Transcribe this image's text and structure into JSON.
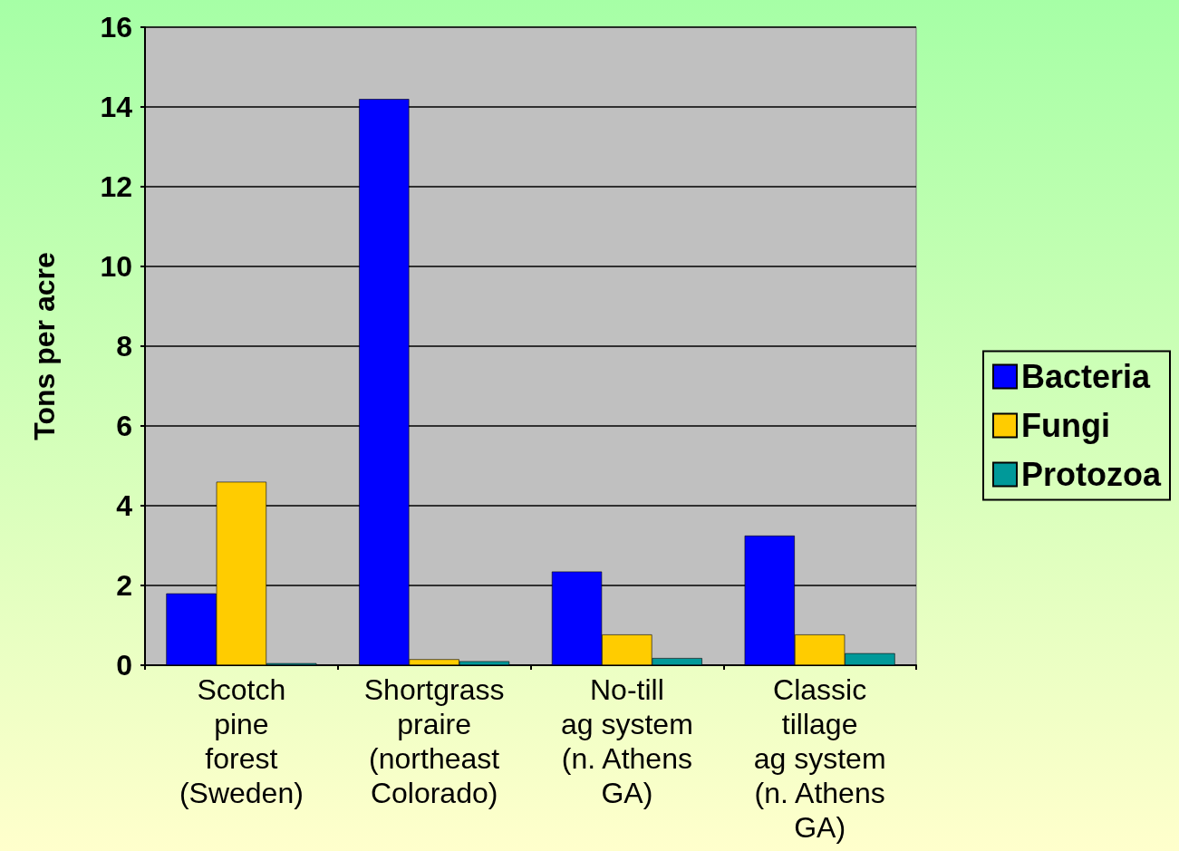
{
  "chart_data": {
    "type": "bar",
    "ylabel": "Tons per acre",
    "categories": [
      "Scotch\npine\nforest\n(Sweden)",
      "Shortgrass\npraire\n(northeast\nColorado)",
      "No-till\nag system\n(n. Athens\nGA)",
      "Classic\ntillage\nag system\n(n. Athens\nGA)"
    ],
    "series": [
      {
        "name": "Bacteria",
        "color": "#0000ff",
        "values": [
          1.8,
          14.2,
          2.35,
          3.25
        ]
      },
      {
        "name": "Fungi",
        "color": "#ffcc00",
        "values": [
          4.6,
          0.15,
          0.77,
          0.77
        ]
      },
      {
        "name": "Protozoa",
        "color": "#009999",
        "values": [
          0.05,
          0.1,
          0.18,
          0.3
        ]
      }
    ],
    "ylim": [
      0,
      16
    ],
    "yticks": [
      0,
      2,
      4,
      6,
      8,
      10,
      12,
      14,
      16
    ],
    "grid": "y",
    "legend": "right"
  }
}
